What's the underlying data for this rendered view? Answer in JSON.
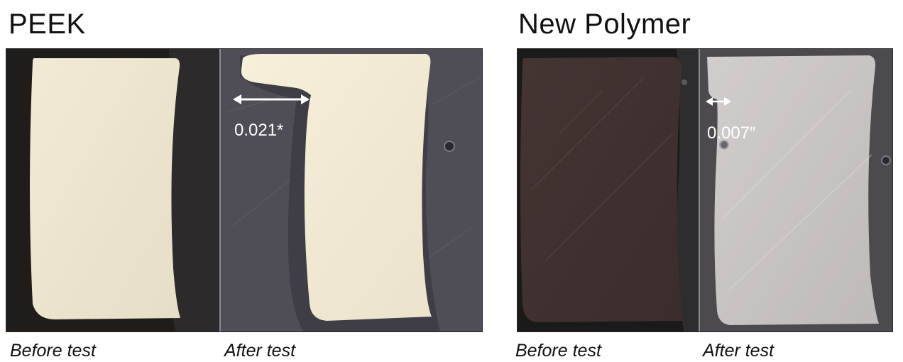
{
  "peek": {
    "title": "PEEK",
    "measurement": "0.021*",
    "before_caption": "Before test",
    "after_caption": "After test"
  },
  "new_polymer": {
    "title": "New Polymer",
    "measurement": "0.007″",
    "before_caption": "Before test",
    "after_caption": "After test"
  },
  "colors": {
    "peek_sample": "#efe8d2",
    "new_polymer_before": "#3f312f",
    "new_polymer_after": "#c9c4c4",
    "background_dark": "#1d1a17",
    "background_gray": "#4e4c55"
  }
}
